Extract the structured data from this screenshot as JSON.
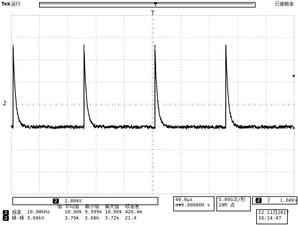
{
  "top_bar": {
    "brand": "Tek",
    "run_state": "运行",
    "trigger_state": "已被触发",
    "record_marker": "T",
    "trigger_position_marker": "T"
  },
  "channel": {
    "number": "2",
    "ground_marker": "2",
    "trigger_level_marker": "◂",
    "scale": "1.00kV"
  },
  "timebase": {
    "per_div": "40.0μs",
    "position": "▼0.000000 s"
  },
  "sampling": {
    "rate": "5.00G次/秒",
    "points": "20M 点"
  },
  "trigger": {
    "source": "2",
    "slope_icon": "rising-edge",
    "level": "1.60kV"
  },
  "datetime": {
    "date": "22 11月2017",
    "time": "16:14:07"
  },
  "measurements": {
    "headers": [
      "值",
      "平均值",
      "最小值",
      "最大值",
      "标准差"
    ],
    "rows": [
      {
        "channel": "2",
        "name": "频率",
        "values": [
          "10.00kHz",
          "10.00k",
          "9.999k",
          "10.00k",
          "420.4m"
        ]
      },
      {
        "channel": "2",
        "name": "峰-峰",
        "values": [
          "3.68kV",
          "3.70k",
          "3.68k",
          "3.72k",
          "21.4"
        ]
      }
    ]
  },
  "waveform": {
    "pulse_period_us": 100,
    "time_per_div_us": 40,
    "horizontal_divisions": 10,
    "vertical_divisions": 8,
    "volts_per_div_kv": 1.0,
    "baseline_div_from_top": 5.0,
    "peak_kv": 3.68,
    "decay_tau_us": 3.5,
    "pulse_times_us": [
      0,
      100,
      200,
      300
    ]
  },
  "colors": {
    "trace": "#000000",
    "grid": "#9a9a9a",
    "background": "#ffffff"
  }
}
